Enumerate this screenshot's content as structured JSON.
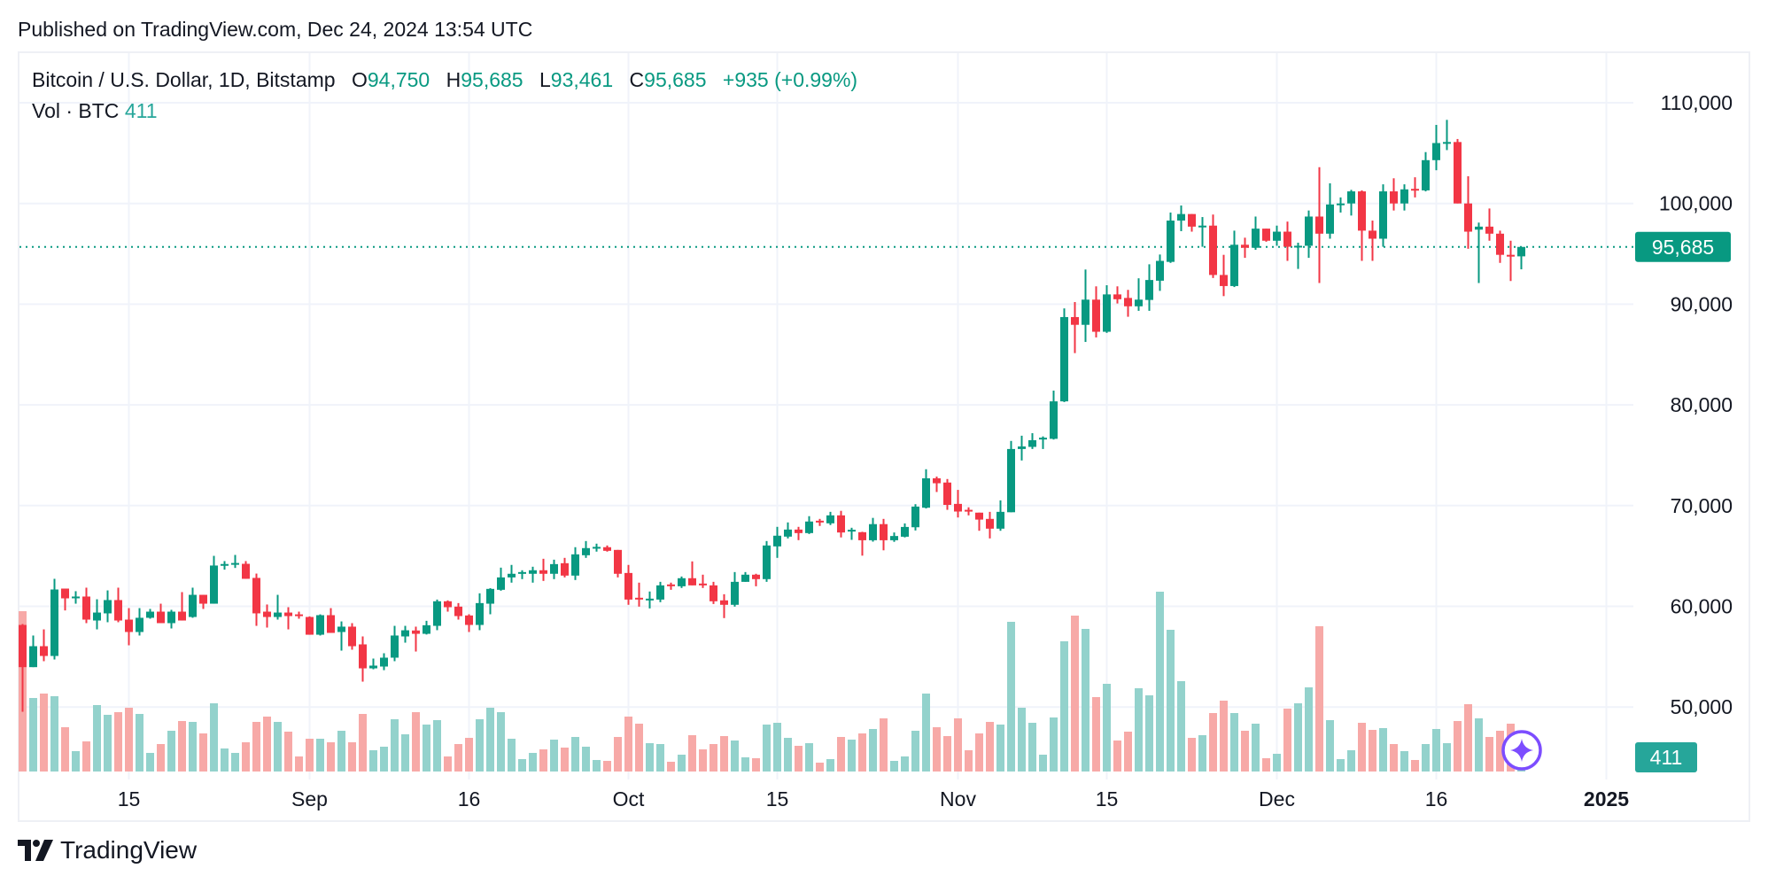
{
  "header": {
    "published": "Published on TradingView.com, Dec 24, 2024 13:54 UTC"
  },
  "legend": {
    "title": "Bitcoin / U.S. Dollar, 1D, Bitstamp",
    "open_label": "O",
    "open": "94,750",
    "high_label": "H",
    "high": "95,685",
    "low_label": "L",
    "low": "93,461",
    "close_label": "C",
    "close": "95,685",
    "change": "+935 (+0.99%)",
    "volume_label": "Vol · BTC",
    "volume": "411"
  },
  "footer": {
    "brand": "TradingView",
    "logo_icon": "tradingview-logo-icon"
  },
  "colors": {
    "up": "#089981",
    "down": "#f23645",
    "vol_up": "#93d2cc",
    "vol_down": "#f7a9a7",
    "vol_label": "#26a69a",
    "grid": "#f0f3fa",
    "assistant_icon": "#7c4dff"
  },
  "chart_data": {
    "type": "candlestick",
    "title": "Bitcoin / U.S. Dollar, 1D, Bitstamp",
    "interval": "1D",
    "y_axis": {
      "ticks": [
        50000,
        60000,
        70000,
        80000,
        90000,
        100000,
        110000
      ],
      "tick_labels": [
        "50,000",
        "60,000",
        "70,000",
        "80,000",
        "90,000",
        "100,000",
        "110,000"
      ],
      "range": [
        44000,
        113000
      ]
    },
    "x_axis": {
      "ticks": [
        {
          "date": "2024-08-15",
          "label": "15",
          "bold": false
        },
        {
          "date": "2024-09-01",
          "label": "Sep",
          "bold": false
        },
        {
          "date": "2024-09-16",
          "label": "16",
          "bold": false
        },
        {
          "date": "2024-10-01",
          "label": "Oct",
          "bold": false
        },
        {
          "date": "2024-10-15",
          "label": "15",
          "bold": false
        },
        {
          "date": "2024-11-01",
          "label": "Nov",
          "bold": false
        },
        {
          "date": "2024-11-15",
          "label": "15",
          "bold": false
        },
        {
          "date": "2024-12-01",
          "label": "Dec",
          "bold": false
        },
        {
          "date": "2024-12-16",
          "label": "16",
          "bold": false
        },
        {
          "date": "2025-01-01",
          "label": "2025",
          "bold": true
        }
      ]
    },
    "grid": true,
    "last_price": {
      "value": 95685,
      "label": "95,685"
    },
    "last_volume": {
      "value": 411,
      "label": "411"
    },
    "columns": [
      "date",
      "open",
      "high",
      "low",
      "close",
      "volume_btc"
    ],
    "candles": [
      [
        "2024-08-05",
        58150,
        58240,
        49530,
        53960,
        5430
      ],
      [
        "2024-08-06",
        53960,
        57100,
        53960,
        56040,
        2490
      ],
      [
        "2024-08-07",
        56040,
        57710,
        54550,
        55070,
        2640
      ],
      [
        "2024-08-08",
        55070,
        62730,
        54720,
        61670,
        2550
      ],
      [
        "2024-08-09",
        61760,
        61760,
        59590,
        60790,
        1500
      ],
      [
        "2024-08-10",
        60880,
        61500,
        60260,
        60970,
        690
      ],
      [
        "2024-08-11",
        60970,
        61850,
        58330,
        58680,
        1020
      ],
      [
        "2024-08-12",
        58590,
        60700,
        57710,
        59380,
        2250
      ],
      [
        "2024-08-13",
        59300,
        61580,
        58420,
        60620,
        1920
      ],
      [
        "2024-08-14",
        60620,
        61850,
        58420,
        58590,
        2010
      ],
      [
        "2024-08-15",
        58680,
        59820,
        56130,
        57450,
        2160
      ],
      [
        "2024-08-16",
        57450,
        59820,
        57100,
        58860,
        1950
      ],
      [
        "2024-08-17",
        58860,
        59740,
        58770,
        59470,
        630
      ],
      [
        "2024-08-18",
        59470,
        60260,
        58330,
        58330,
        930
      ],
      [
        "2024-08-19",
        58330,
        59650,
        57800,
        59470,
        1380
      ],
      [
        "2024-08-20",
        59470,
        61410,
        58590,
        58590,
        1710
      ],
      [
        "2024-08-21",
        58940,
        61850,
        58860,
        61140,
        1680
      ],
      [
        "2024-08-22",
        61140,
        61140,
        59740,
        60260,
        1290
      ],
      [
        "2024-08-23",
        60260,
        65010,
        60260,
        64050,
        2310
      ],
      [
        "2024-08-24",
        64130,
        64490,
        63640,
        64200,
        780
      ],
      [
        "2024-08-25",
        64220,
        65100,
        63810,
        64300,
        630
      ],
      [
        "2024-08-26",
        64220,
        64490,
        62730,
        62730,
        990
      ],
      [
        "2024-08-27",
        62820,
        63250,
        58060,
        59300,
        1680
      ],
      [
        "2024-08-28",
        59470,
        60180,
        57890,
        58940,
        1860
      ],
      [
        "2024-08-29",
        58940,
        61140,
        58680,
        59380,
        1680
      ],
      [
        "2024-08-30",
        59380,
        59910,
        57710,
        59030,
        1350
      ],
      [
        "2024-08-31",
        59200,
        59470,
        58770,
        59120,
        510
      ],
      [
        "2024-09-01",
        58940,
        59000,
        57180,
        57180,
        1110
      ],
      [
        "2024-09-02",
        57180,
        59200,
        57100,
        59120,
        1110
      ],
      [
        "2024-09-03",
        59120,
        59820,
        57360,
        57360,
        990
      ],
      [
        "2024-09-04",
        57450,
        58500,
        55600,
        57980,
        1380
      ],
      [
        "2024-09-05",
        57980,
        58330,
        55690,
        56040,
        990
      ],
      [
        "2024-09-06",
        56220,
        57010,
        52520,
        53840,
        1950
      ],
      [
        "2024-09-07",
        53840,
        54810,
        53750,
        54110,
        720
      ],
      [
        "2024-09-08",
        54020,
        55340,
        53660,
        54900,
        840
      ],
      [
        "2024-09-09",
        54900,
        58060,
        54550,
        57100,
        1770
      ],
      [
        "2024-09-10",
        57010,
        58060,
        56390,
        57620,
        1260
      ],
      [
        "2024-09-11",
        57600,
        57980,
        55510,
        57270,
        2010
      ],
      [
        "2024-09-12",
        57270,
        58560,
        57200,
        58120,
        1590
      ],
      [
        "2024-09-13",
        58060,
        60670,
        57630,
        60500,
        1740
      ],
      [
        "2024-09-14",
        60500,
        60590,
        59470,
        59910,
        510
      ],
      [
        "2024-09-15",
        59970,
        60320,
        58680,
        59030,
        930
      ],
      [
        "2024-09-16",
        59090,
        59210,
        57450,
        58150,
        1140
      ],
      [
        "2024-09-17",
        58150,
        61290,
        57630,
        60320,
        1770
      ],
      [
        "2024-09-18",
        60260,
        61800,
        59210,
        61730,
        2160
      ],
      [
        "2024-09-19",
        61640,
        63840,
        61550,
        62870,
        2010
      ],
      [
        "2024-09-20",
        62870,
        64110,
        62350,
        63230,
        1110
      ],
      [
        "2024-09-21",
        63310,
        63580,
        62700,
        63400,
        420
      ],
      [
        "2024-09-22",
        63230,
        63930,
        62350,
        63580,
        630
      ],
      [
        "2024-09-23",
        63580,
        64720,
        62520,
        63230,
        750
      ],
      [
        "2024-09-24",
        63230,
        64630,
        62700,
        64190,
        1080
      ],
      [
        "2024-09-25",
        64280,
        64810,
        62870,
        63050,
        810
      ],
      [
        "2024-09-26",
        63050,
        65870,
        62610,
        65160,
        1170
      ],
      [
        "2024-09-27",
        65070,
        66480,
        64810,
        65780,
        840
      ],
      [
        "2024-09-28",
        65830,
        66220,
        65430,
        65900,
        390
      ],
      [
        "2024-09-29",
        65870,
        66040,
        65430,
        65510,
        360
      ],
      [
        "2024-09-30",
        65600,
        65600,
        62870,
        63230,
        1170
      ],
      [
        "2024-10-01",
        63310,
        64110,
        60150,
        60670,
        1860
      ],
      [
        "2024-10-02",
        60850,
        62350,
        59970,
        60760,
        1620
      ],
      [
        "2024-10-03",
        60670,
        61470,
        59790,
        60760,
        960
      ],
      [
        "2024-10-04",
        60670,
        62430,
        60410,
        62080,
        930
      ],
      [
        "2024-10-05",
        62170,
        62350,
        61640,
        62080,
        330
      ],
      [
        "2024-10-06",
        61990,
        62960,
        61820,
        62790,
        570
      ],
      [
        "2024-10-07",
        62790,
        64460,
        62080,
        62080,
        1230
      ],
      [
        "2024-10-08",
        62260,
        63140,
        61820,
        62080,
        750
      ],
      [
        "2024-10-09",
        62080,
        62430,
        60230,
        60500,
        930
      ],
      [
        "2024-10-10",
        60590,
        61200,
        58830,
        60150,
        1200
      ],
      [
        "2024-10-11",
        60150,
        63400,
        59970,
        62430,
        1050
      ],
      [
        "2024-10-12",
        62430,
        63400,
        62430,
        63140,
        480
      ],
      [
        "2024-10-13",
        63140,
        63230,
        61990,
        62700,
        450
      ],
      [
        "2024-10-14",
        62700,
        66480,
        62430,
        66040,
        1590
      ],
      [
        "2024-10-15",
        65950,
        67890,
        64810,
        67010,
        1650
      ],
      [
        "2024-10-16",
        66920,
        68330,
        66740,
        67620,
        1140
      ],
      [
        "2024-10-17",
        67620,
        67890,
        66570,
        67270,
        870
      ],
      [
        "2024-10-18",
        67270,
        68950,
        67180,
        68420,
        960
      ],
      [
        "2024-10-19",
        68500,
        68680,
        67980,
        68420,
        300
      ],
      [
        "2024-10-20",
        68240,
        69380,
        68070,
        69030,
        420
      ],
      [
        "2024-10-21",
        69030,
        69480,
        66840,
        67330,
        1170
      ],
      [
        "2024-10-22",
        67450,
        67800,
        66600,
        67600,
        1080
      ],
      [
        "2024-10-23",
        67360,
        67400,
        65030,
        66560,
        1290
      ],
      [
        "2024-10-24",
        66560,
        68780,
        66420,
        68160,
        1440
      ],
      [
        "2024-10-25",
        68160,
        68680,
        65560,
        66560,
        1800
      ],
      [
        "2024-10-26",
        66560,
        67330,
        66400,
        66980,
        360
      ],
      [
        "2024-10-27",
        66910,
        68230,
        66840,
        67880,
        510
      ],
      [
        "2024-10-28",
        67850,
        70140,
        67530,
        69900,
        1380
      ],
      [
        "2024-10-29",
        69790,
        73610,
        69720,
        72710,
        2640
      ],
      [
        "2024-10-30",
        72710,
        72880,
        71350,
        72220,
        1500
      ],
      [
        "2024-10-31",
        72290,
        72640,
        69580,
        70070,
        1200
      ],
      [
        "2024-11-01",
        70170,
        71560,
        68820,
        69410,
        1800
      ],
      [
        "2024-11-02",
        69580,
        69830,
        69030,
        69410,
        720
      ],
      [
        "2024-11-03",
        69300,
        69300,
        67500,
        68610,
        1290
      ],
      [
        "2024-11-04",
        68680,
        69380,
        66740,
        67710,
        1680
      ],
      [
        "2024-11-05",
        67710,
        70520,
        67500,
        69380,
        1590
      ],
      [
        "2024-11-06",
        69340,
        76420,
        69340,
        75620,
        5070
      ],
      [
        "2024-11-07",
        75620,
        76940,
        74480,
        75870,
        2160
      ],
      [
        "2024-11-08",
        75830,
        77190,
        75620,
        76490,
        1650
      ],
      [
        "2024-11-09",
        76670,
        76870,
        75620,
        76740,
        570
      ],
      [
        "2024-11-10",
        76630,
        81420,
        76560,
        80350,
        1830
      ],
      [
        "2024-11-11",
        80350,
        89580,
        80280,
        88720,
        4410
      ],
      [
        "2024-11-12",
        88720,
        90210,
        85140,
        87950,
        5280
      ],
      [
        "2024-11-13",
        87950,
        93440,
        86250,
        90450,
        4830
      ],
      [
        "2024-11-14",
        90450,
        91770,
        86700,
        87260,
        2520
      ],
      [
        "2024-11-15",
        87260,
        91880,
        87150,
        90970,
        2970
      ],
      [
        "2024-11-16",
        90970,
        91770,
        90070,
        90490,
        1050
      ],
      [
        "2024-11-17",
        90620,
        91420,
        88750,
        89790,
        1350
      ],
      [
        "2024-11-18",
        89790,
        92570,
        89340,
        90450,
        2820
      ],
      [
        "2024-11-19",
        90420,
        93960,
        89340,
        92400,
        2580
      ],
      [
        "2024-11-20",
        92330,
        94930,
        91320,
        94300,
        6090
      ],
      [
        "2024-11-21",
        94200,
        99100,
        94100,
        98300,
        4800
      ],
      [
        "2024-11-22",
        98300,
        99800,
        97250,
        98950,
        3060
      ],
      [
        "2024-11-23",
        98950,
        98950,
        97200,
        97700,
        1140
      ],
      [
        "2024-11-24",
        97700,
        98650,
        95700,
        97800,
        1230
      ],
      [
        "2024-11-25",
        97800,
        98900,
        92600,
        92900,
        1980
      ],
      [
        "2024-11-26",
        92900,
        94900,
        90800,
        91800,
        2400
      ],
      [
        "2024-11-27",
        91800,
        97300,
        91700,
        95900,
        1980
      ],
      [
        "2024-11-28",
        95900,
        96600,
        94600,
        95600,
        1380
      ],
      [
        "2024-11-29",
        95600,
        98700,
        95400,
        97500,
        1620
      ],
      [
        "2024-11-30",
        97500,
        97500,
        96200,
        96300,
        450
      ],
      [
        "2024-12-01",
        96300,
        97800,
        95800,
        97200,
        600
      ],
      [
        "2024-12-02",
        97200,
        98200,
        94300,
        95700,
        2130
      ],
      [
        "2024-12-03",
        95700,
        96100,
        93500,
        95800,
        2310
      ],
      [
        "2024-12-04",
        95800,
        99300,
        94600,
        98700,
        2850
      ],
      [
        "2024-12-05",
        98700,
        103600,
        92100,
        97000,
        4920
      ],
      [
        "2024-12-06",
        97000,
        102000,
        96500,
        99900,
        1740
      ],
      [
        "2024-12-07",
        99900,
        100600,
        99100,
        100000,
        420
      ],
      [
        "2024-12-08",
        100000,
        101350,
        98800,
        101200,
        720
      ],
      [
        "2024-12-09",
        101200,
        101300,
        94300,
        97300,
        1650
      ],
      [
        "2024-12-10",
        97300,
        98300,
        94300,
        96500,
        1410
      ],
      [
        "2024-12-11",
        96500,
        101900,
        95700,
        101200,
        1470
      ],
      [
        "2024-12-12",
        101200,
        102500,
        99300,
        100000,
        930
      ],
      [
        "2024-12-13",
        100000,
        101900,
        99300,
        101400,
        690
      ],
      [
        "2024-12-14",
        101450,
        102600,
        100600,
        101300,
        390
      ],
      [
        "2024-12-15",
        101300,
        105100,
        101200,
        104300,
        930
      ],
      [
        "2024-12-16",
        104300,
        107800,
        103300,
        106000,
        1440
      ],
      [
        "2024-12-17",
        106000,
        108300,
        105300,
        106100,
        960
      ],
      [
        "2024-12-18",
        106100,
        106400,
        100000,
        100000,
        1710
      ],
      [
        "2024-12-19",
        100000,
        102700,
        95500,
        97200,
        2280
      ],
      [
        "2024-12-20",
        97400,
        98100,
        92100,
        97700,
        1800
      ],
      [
        "2024-12-21",
        97700,
        99500,
        96300,
        97000,
        1170
      ],
      [
        "2024-12-22",
        97000,
        97300,
        94100,
        94900,
        1380
      ],
      [
        "2024-12-23",
        94900,
        96300,
        92300,
        94750,
        1620
      ],
      [
        "2024-12-24",
        94750,
        95685,
        93461,
        95685,
        411
      ]
    ]
  }
}
